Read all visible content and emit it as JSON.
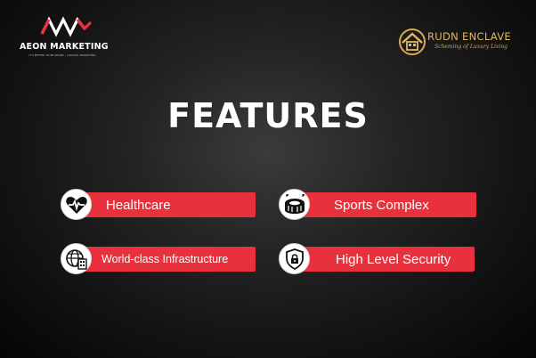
{
  "brand_left": {
    "name": "AEON MARKETING",
    "tagline": "IT'S BETTER TO BE SMART... | DIGITAL MARKETING",
    "icon": "aeon-wave-logo-icon"
  },
  "brand_right": {
    "name": "RUDN ENCLAVE",
    "tagline": "Scheming of Luxury Living",
    "icon": "house-logo-icon"
  },
  "title": "FEATURES",
  "features": [
    {
      "label": "Healthcare",
      "icon": "heart-pulse-icon"
    },
    {
      "label": "Sports Complex",
      "icon": "stadium-icon"
    },
    {
      "label": "World-class Infrastructure",
      "icon": "globe-buildings-icon"
    },
    {
      "label": "High Level Security",
      "icon": "shield-lock-icon"
    }
  ],
  "colors": {
    "accent": "#e8313c",
    "gold": "#e2b65e",
    "background": "#1a1a1a"
  }
}
